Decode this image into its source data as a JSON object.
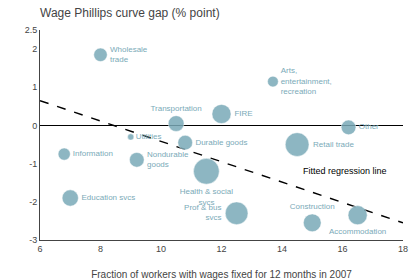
{
  "chart_data": {
    "type": "scatter",
    "title": "Wage Phillips curve gap (% point)",
    "x_label": "Fraction of workers with wages fixed for 12 months in 2007",
    "xlim": [
      6,
      18
    ],
    "ylim": [
      -3,
      2.5
    ],
    "xticks": [
      6,
      8,
      10,
      12,
      14,
      16,
      18
    ],
    "yticks": [
      -3,
      -2,
      -1,
      0,
      1,
      2,
      2.5
    ],
    "grid": false,
    "color": "#7aaab8",
    "points": [
      {
        "label": "Wholesale\ntrade",
        "x": 8.0,
        "y": 1.85,
        "size": 55
      },
      {
        "label": "Arts,\nentertainment,\nrecreation",
        "x": 13.7,
        "y": 1.15,
        "size": 35
      },
      {
        "label": "Transportation",
        "x": 10.5,
        "y": 0.05,
        "size": 75
      },
      {
        "label": "FIRE",
        "x": 12.0,
        "y": 0.3,
        "size": 110
      },
      {
        "label": "Other",
        "x": 16.2,
        "y": -0.05,
        "size": 65
      },
      {
        "label": "Utilities",
        "x": 9.0,
        "y": -0.3,
        "size": 12
      },
      {
        "label": "Durable goods",
        "x": 10.8,
        "y": -0.45,
        "size": 65
      },
      {
        "label": "Retail trade",
        "x": 14.5,
        "y": -0.5,
        "size": 170
      },
      {
        "label": "Information",
        "x": 6.8,
        "y": -0.75,
        "size": 45
      },
      {
        "label": "Nondurable\ngoods",
        "x": 9.2,
        "y": -0.9,
        "size": 65
      },
      {
        "label": "Health & social\nsvcs",
        "x": 11.5,
        "y": -1.2,
        "size": 200
      },
      {
        "label": "Education svcs",
        "x": 7.0,
        "y": -1.9,
        "size": 80
      },
      {
        "label": "Prof & bus\nsvcs",
        "x": 12.5,
        "y": -2.3,
        "size": 155
      },
      {
        "label": "Construction",
        "x": 15.0,
        "y": -2.55,
        "size": 95
      },
      {
        "label": "Accommodation",
        "x": 16.5,
        "y": -2.35,
        "size": 110
      }
    ],
    "regression": {
      "label": "Fitted regression line",
      "x": [
        6,
        18
      ],
      "y": [
        0.65,
        -2.55
      ],
      "color": "#000000",
      "line_style": "dashed"
    }
  }
}
